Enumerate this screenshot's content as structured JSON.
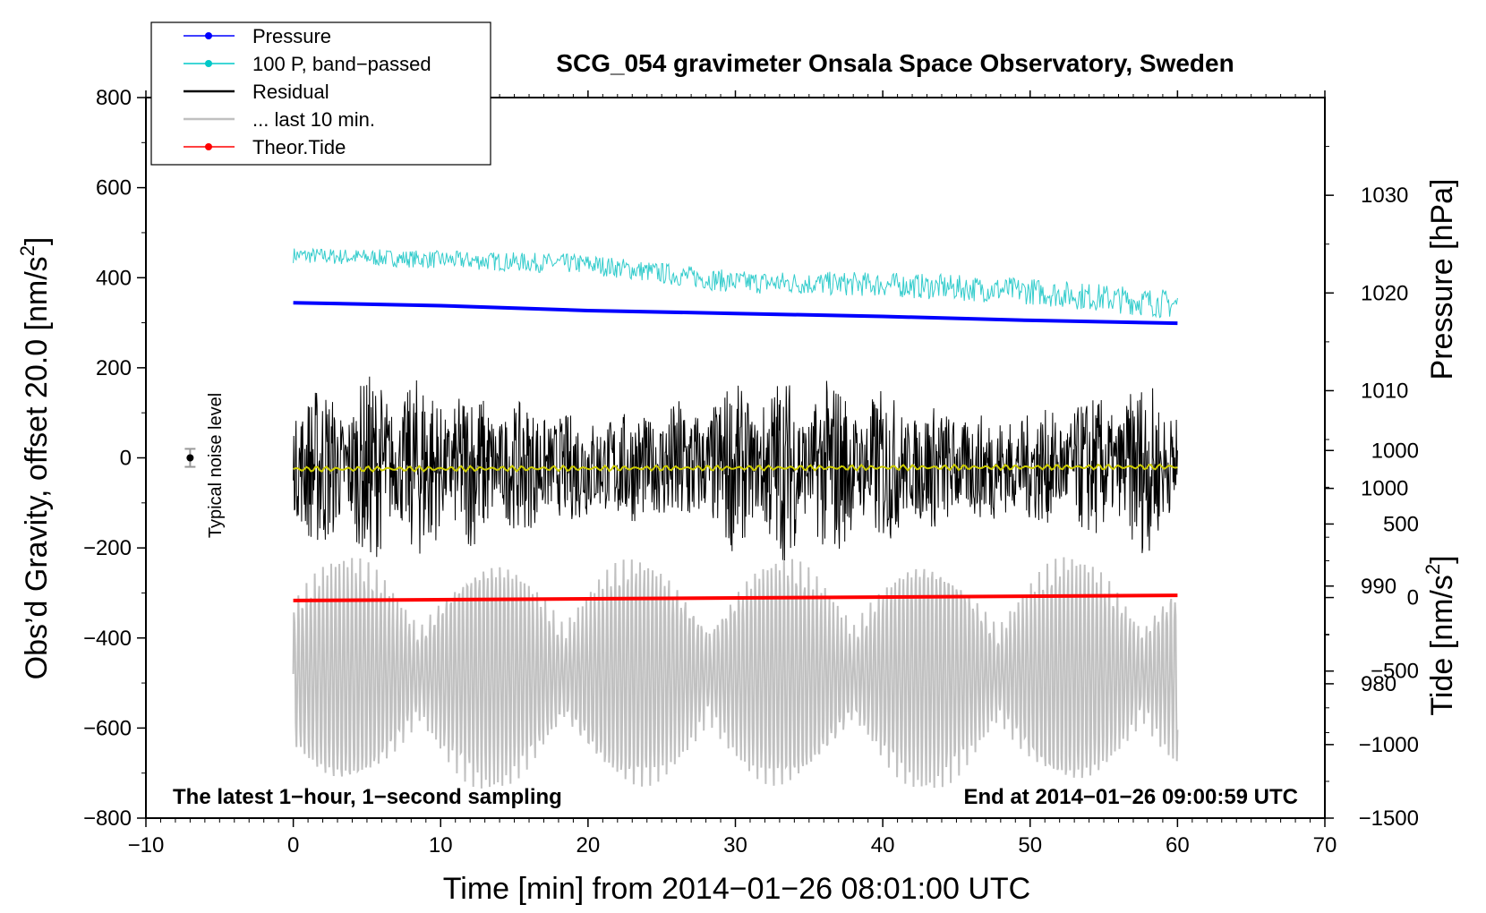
{
  "chart_data": {
    "type": "line",
    "title": "SCG_054 gravimeter Onsala Space Observatory, Sweden",
    "xlabel": "Time [min] from 2014−01−26 08:01:00 UTC",
    "ylabel_left_prefix": "Obs’d Gravity, offset 20.0 [nm/s",
    "ylabel_left_sup": "2",
    "ylabel_left_suffix": "]",
    "ylabel_right_top": "Pressure [hPa]",
    "ylabel_right_bottom_prefix": "Tide [nm/s",
    "ylabel_right_bottom_sup": "2",
    "ylabel_right_bottom_suffix": "]",
    "xlim": [
      -10,
      70
    ],
    "ylim_left": [
      -800,
      800
    ],
    "ylim_pressure": [
      966.25,
      1040
    ],
    "ylim_tide": [
      -1500,
      3400
    ],
    "x_ticks": [
      "−10",
      "0",
      "10",
      "20",
      "30",
      "40",
      "50",
      "60",
      "70"
    ],
    "x_tick_values": [
      -10,
      0,
      10,
      20,
      30,
      40,
      50,
      60,
      70
    ],
    "y_left_ticks": [
      "800",
      "600",
      "400",
      "200",
      "0",
      "−200",
      "−400",
      "−600",
      "−800"
    ],
    "y_left_tick_values": [
      800,
      600,
      400,
      200,
      0,
      -200,
      -400,
      -600,
      -800
    ],
    "y_pressure_ticks": [
      "1030",
      "1020",
      "1010",
      "1000",
      "990",
      "980"
    ],
    "y_pressure_tick_values": [
      1030,
      1020,
      1010,
      1000,
      990,
      980
    ],
    "y_tide_ticks": [
      "1000",
      "500",
      "0",
      "−500",
      "−1000",
      "−1500"
    ],
    "y_tide_tick_values": [
      1000,
      500,
      0,
      -500,
      -1000,
      -1500
    ],
    "annotation_left": "The latest 1−hour, 1−second sampling",
    "annotation_right": "End at 2014−01−26 09:00:59 UTC",
    "noise_label": "Typical noise level",
    "noise_level": {
      "x": -7,
      "y": 0,
      "err": 20
    },
    "legend": [
      {
        "name": "Pressure",
        "color": "#0000ff",
        "marker": true
      },
      {
        "name": "100 P, band−passed",
        "color": "#00c8c8",
        "marker": true
      },
      {
        "name": "Residual",
        "color": "#000000",
        "marker": false
      },
      {
        "name": "... last 10 min.",
        "color": "#c0c0c0",
        "marker": false
      },
      {
        "name": "Theor.Tide",
        "color": "#ff0000",
        "marker": true
      }
    ],
    "series": [
      {
        "name": "Pressure",
        "axis": "pressure",
        "color": "#0000ff",
        "x": [
          0,
          10,
          20,
          30,
          40,
          50,
          60
        ],
        "values": [
          1019.0,
          1018.7,
          1018.2,
          1017.9,
          1017.6,
          1017.2,
          1016.9
        ]
      },
      {
        "name": "100 P, band−passed",
        "axis": "left",
        "color": "#33cccc",
        "x": [
          0,
          10,
          20,
          25,
          30,
          40,
          50,
          60
        ],
        "values": [
          450,
          440,
          430,
          410,
          390,
          385,
          370,
          340
        ],
        "noise_amp": 25
      },
      {
        "name": "Residual",
        "axis": "left",
        "color": "#000000",
        "x": [
          0,
          60
        ],
        "values": [
          -20,
          -20
        ],
        "noise_amp": 150
      },
      {
        "name": "Residual, smoothed",
        "axis": "left",
        "color": "#cccc00",
        "x": [
          0,
          60
        ],
        "values": [
          -25,
          -20
        ]
      },
      {
        "name": "... last 10 min.",
        "axis": "left",
        "color": "#c0c0c0",
        "x": [
          0,
          60
        ],
        "values": [
          -480,
          -480
        ],
        "noise_amp": 200
      },
      {
        "name": "Theor.Tide",
        "axis": "tide",
        "color": "#ff0000",
        "x": [
          0,
          60
        ],
        "values": [
          -20,
          15
        ]
      }
    ]
  }
}
